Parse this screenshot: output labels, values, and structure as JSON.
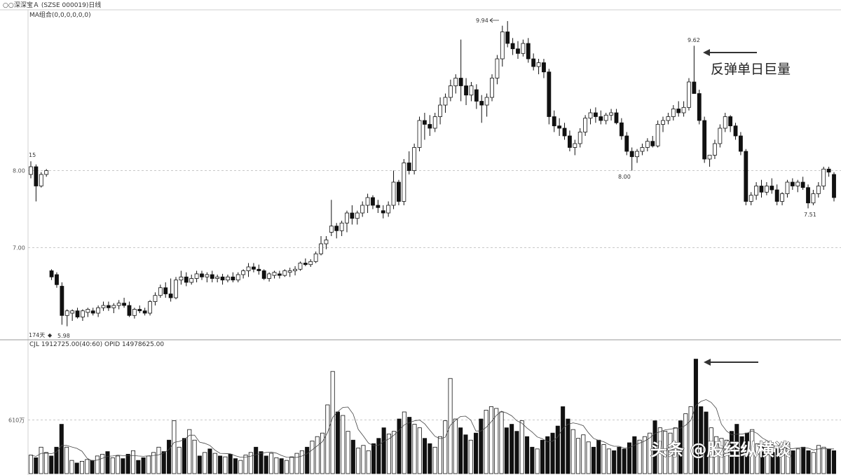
{
  "header": {
    "stock_title": "深深宝Ａ (SZSE 000019)日线",
    "ma_label": "MA组合(0,0,0,0,0,0)",
    "volume_label": "CJL  1912725.00(40:60)   OPID  14978625.00"
  },
  "annotations": {
    "rebound_text": "反弹单日巨量",
    "high_label": "9.94",
    "second_high_label": "9.62",
    "mid_low_label": "8.00",
    "right_low_label": "7.51",
    "low_label": "5.98",
    "days_label": "174天",
    "left_label": "15"
  },
  "watermark": "头条 @股经纵横谈",
  "chart_data": [
    {
      "type": "candlestick",
      "y_ticks": [
        "8.00",
        "7.00"
      ],
      "y_tick_values": [
        8.0,
        7.0
      ],
      "ylim": [
        5.85,
        10.05
      ],
      "grid": "dashed horizontal at 8.00 and 7.00",
      "ohlc": [
        [
          7.95,
          8.12,
          7.9,
          8.05
        ],
        [
          8.05,
          8.08,
          7.6,
          7.8
        ],
        [
          7.8,
          7.98,
          7.78,
          7.95
        ],
        [
          7.95,
          8.02,
          7.92,
          8.0
        ],
        [
          6.7,
          6.72,
          6.58,
          6.62
        ],
        [
          6.65,
          6.68,
          6.48,
          6.52
        ],
        [
          6.5,
          6.55,
          6.0,
          6.12
        ],
        [
          6.12,
          6.2,
          5.98,
          6.18
        ],
        [
          6.15,
          6.2,
          6.05,
          6.18
        ],
        [
          6.18,
          6.22,
          6.08,
          6.1
        ],
        [
          6.1,
          6.2,
          6.05,
          6.18
        ],
        [
          6.16,
          6.22,
          6.1,
          6.2
        ],
        [
          6.18,
          6.22,
          6.12,
          6.15
        ],
        [
          6.15,
          6.25,
          6.1,
          6.22
        ],
        [
          6.22,
          6.3,
          6.18,
          6.25
        ],
        [
          6.25,
          6.3,
          6.18,
          6.22
        ],
        [
          6.22,
          6.28,
          6.15,
          6.25
        ],
        [
          6.25,
          6.32,
          6.2,
          6.28
        ],
        [
          6.28,
          6.35,
          6.22,
          6.25
        ],
        [
          6.25,
          6.3,
          6.1,
          6.12
        ],
        [
          6.12,
          6.22,
          6.08,
          6.2
        ],
        [
          6.2,
          6.25,
          6.15,
          6.18
        ],
        [
          6.18,
          6.22,
          6.12,
          6.15
        ],
        [
          6.15,
          6.32,
          6.12,
          6.3
        ],
        [
          6.3,
          6.42,
          6.25,
          6.38
        ],
        [
          6.38,
          6.52,
          6.35,
          6.48
        ],
        [
          6.48,
          6.55,
          6.35,
          6.4
        ],
        [
          6.4,
          6.6,
          6.3,
          6.35
        ],
        [
          6.35,
          6.62,
          6.33,
          6.58
        ],
        [
          6.58,
          6.7,
          6.52,
          6.62
        ],
        [
          6.62,
          6.68,
          6.5,
          6.55
        ],
        [
          6.55,
          6.65,
          6.52,
          6.6
        ],
        [
          6.6,
          6.7,
          6.55,
          6.66
        ],
        [
          6.66,
          6.7,
          6.58,
          6.62
        ],
        [
          6.62,
          6.68,
          6.55,
          6.65
        ],
        [
          6.65,
          6.7,
          6.55,
          6.6
        ],
        [
          6.6,
          6.65,
          6.55,
          6.62
        ],
        [
          6.62,
          6.66,
          6.52,
          6.58
        ],
        [
          6.58,
          6.65,
          6.55,
          6.62
        ],
        [
          6.62,
          6.68,
          6.55,
          6.58
        ],
        [
          6.58,
          6.68,
          6.55,
          6.65
        ],
        [
          6.65,
          6.72,
          6.6,
          6.7
        ],
        [
          6.7,
          6.8,
          6.62,
          6.75
        ],
        [
          6.75,
          6.8,
          6.68,
          6.72
        ],
        [
          6.72,
          6.78,
          6.65,
          6.7
        ],
        [
          6.7,
          6.72,
          6.58,
          6.6
        ],
        [
          6.6,
          6.68,
          6.56,
          6.66
        ],
        [
          6.64,
          6.7,
          6.6,
          6.68
        ],
        [
          6.66,
          6.7,
          6.6,
          6.64
        ],
        [
          6.64,
          6.72,
          6.62,
          6.7
        ],
        [
          6.68,
          6.74,
          6.62,
          6.7
        ],
        [
          6.7,
          6.76,
          6.64,
          6.72
        ],
        [
          6.72,
          6.82,
          6.7,
          6.8
        ],
        [
          6.8,
          6.86,
          6.76,
          6.78
        ],
        [
          6.78,
          6.85,
          6.75,
          6.82
        ],
        [
          6.82,
          6.95,
          6.8,
          6.92
        ],
        [
          6.92,
          7.15,
          6.9,
          7.05
        ],
        [
          7.05,
          7.15,
          6.98,
          7.1
        ],
        [
          7.2,
          7.62,
          7.15,
          7.28
        ],
        [
          7.28,
          7.32,
          7.12,
          7.22
        ],
        [
          7.22,
          7.35,
          7.15,
          7.32
        ],
        [
          7.32,
          7.48,
          7.2,
          7.45
        ],
        [
          7.45,
          7.55,
          7.3,
          7.38
        ],
        [
          7.38,
          7.48,
          7.3,
          7.45
        ],
        [
          7.45,
          7.6,
          7.4,
          7.55
        ],
        [
          7.55,
          7.7,
          7.45,
          7.65
        ],
        [
          7.65,
          7.68,
          7.5,
          7.55
        ],
        [
          7.55,
          7.62,
          7.45,
          7.52
        ],
        [
          7.48,
          7.55,
          7.38,
          7.45
        ],
        [
          7.45,
          7.6,
          7.4,
          7.55
        ],
        [
          7.55,
          8.0,
          7.5,
          7.85
        ],
        [
          7.85,
          7.88,
          7.55,
          7.6
        ],
        [
          7.6,
          8.15,
          7.55,
          8.1
        ],
        [
          8.1,
          8.25,
          7.95,
          8.0
        ],
        [
          8.0,
          8.35,
          7.95,
          8.3
        ],
        [
          8.3,
          8.7,
          8.25,
          8.65
        ],
        [
          8.65,
          8.75,
          8.4,
          8.6
        ],
        [
          8.6,
          8.72,
          8.45,
          8.55
        ],
        [
          8.55,
          8.75,
          8.5,
          8.7
        ],
        [
          8.7,
          8.95,
          8.6,
          8.85
        ],
        [
          8.85,
          9.0,
          8.75,
          8.95
        ],
        [
          8.95,
          9.18,
          8.9,
          9.1
        ],
        [
          9.1,
          9.25,
          9.0,
          9.2
        ],
        [
          9.2,
          9.7,
          8.9,
          9.1
        ],
        [
          9.1,
          9.2,
          8.85,
          8.98
        ],
        [
          8.98,
          9.15,
          8.9,
          9.1
        ],
        [
          9.05,
          9.12,
          8.8,
          8.9
        ],
        [
          8.9,
          8.98,
          8.62,
          8.85
        ],
        [
          8.85,
          9.0,
          8.7,
          8.95
        ],
        [
          8.95,
          9.25,
          8.9,
          9.2
        ],
        [
          9.2,
          9.5,
          9.12,
          9.45
        ],
        [
          9.45,
          9.88,
          9.35,
          9.8
        ],
        [
          9.8,
          9.94,
          9.6,
          9.65
        ],
        [
          9.65,
          9.72,
          9.5,
          9.58
        ],
        [
          9.58,
          9.68,
          9.45,
          9.52
        ],
        [
          9.52,
          9.7,
          9.48,
          9.65
        ],
        [
          9.65,
          9.72,
          9.4,
          9.45
        ],
        [
          9.45,
          9.52,
          9.3,
          9.35
        ],
        [
          9.35,
          9.45,
          9.25,
          9.4
        ],
        [
          9.4,
          9.45,
          9.2,
          9.28
        ],
        [
          9.28,
          9.32,
          8.6,
          8.7
        ],
        [
          8.7,
          8.78,
          8.5,
          8.58
        ],
        [
          8.58,
          8.68,
          8.45,
          8.55
        ],
        [
          8.55,
          8.62,
          8.4,
          8.45
        ],
        [
          8.45,
          8.52,
          8.25,
          8.3
        ],
        [
          8.3,
          8.4,
          8.2,
          8.35
        ],
        [
          8.35,
          8.55,
          8.3,
          8.5
        ],
        [
          8.5,
          8.72,
          8.45,
          8.68
        ],
        [
          8.68,
          8.8,
          8.6,
          8.75
        ],
        [
          8.75,
          8.82,
          8.62,
          8.7
        ],
        [
          8.7,
          8.78,
          8.6,
          8.65
        ],
        [
          8.65,
          8.75,
          8.6,
          8.72
        ],
        [
          8.72,
          8.8,
          8.65,
          8.75
        ],
        [
          8.75,
          8.8,
          8.6,
          8.62
        ],
        [
          8.62,
          8.68,
          8.4,
          8.45
        ],
        [
          8.45,
          8.5,
          8.2,
          8.25
        ],
        [
          8.25,
          8.3,
          8.0,
          8.18
        ],
        [
          8.18,
          8.28,
          8.1,
          8.25
        ],
        [
          8.25,
          8.35,
          8.2,
          8.3
        ],
        [
          8.3,
          8.42,
          8.25,
          8.38
        ],
        [
          8.38,
          8.45,
          8.3,
          8.32
        ],
        [
          8.32,
          8.65,
          8.3,
          8.6
        ],
        [
          8.6,
          8.7,
          8.5,
          8.65
        ],
        [
          8.65,
          8.75,
          8.6,
          8.7
        ],
        [
          8.7,
          8.85,
          8.65,
          8.8
        ],
        [
          8.8,
          8.9,
          8.7,
          8.75
        ],
        [
          8.75,
          8.9,
          8.7,
          8.82
        ],
        [
          8.82,
          9.2,
          8.78,
          9.15
        ],
        [
          9.15,
          9.62,
          9.0,
          9.0
        ],
        [
          9.0,
          9.05,
          8.6,
          8.65
        ],
        [
          8.65,
          8.7,
          8.1,
          8.15
        ],
        [
          8.15,
          8.2,
          8.05,
          8.2
        ],
        [
          8.2,
          8.4,
          8.15,
          8.35
        ],
        [
          8.35,
          8.6,
          8.3,
          8.55
        ],
        [
          8.55,
          8.75,
          8.5,
          8.7
        ],
        [
          8.7,
          8.72,
          8.5,
          8.58
        ],
        [
          8.58,
          8.62,
          8.4,
          8.45
        ],
        [
          8.45,
          8.5,
          8.2,
          8.25
        ],
        [
          8.25,
          8.28,
          7.55,
          7.6
        ],
        [
          7.6,
          7.72,
          7.55,
          7.68
        ],
        [
          7.68,
          7.85,
          7.62,
          7.8
        ],
        [
          7.8,
          7.88,
          7.65,
          7.72
        ],
        [
          7.72,
          7.85,
          7.68,
          7.8
        ],
        [
          7.8,
          7.9,
          7.7,
          7.75
        ],
        [
          7.75,
          7.82,
          7.55,
          7.6
        ],
        [
          7.6,
          7.72,
          7.55,
          7.7
        ],
        [
          7.7,
          7.88,
          7.65,
          7.85
        ],
        [
          7.85,
          7.9,
          7.75,
          7.8
        ],
        [
          7.8,
          7.88,
          7.72,
          7.85
        ],
        [
          7.85,
          7.92,
          7.75,
          7.78
        ],
        [
          7.78,
          7.82,
          7.51,
          7.58
        ],
        [
          7.58,
          7.75,
          7.55,
          7.7
        ],
        [
          7.7,
          7.85,
          7.65,
          7.8
        ],
        [
          7.8,
          8.05,
          7.75,
          8.02
        ],
        [
          8.02,
          8.05,
          7.92,
          7.98
        ],
        [
          7.95,
          7.98,
          7.6,
          7.65
        ]
      ]
    },
    {
      "type": "bar",
      "series_label": "CJL",
      "y_ticks": [
        "610万"
      ],
      "y_tick_values": [
        610
      ],
      "ylim": [
        0,
        1400
      ],
      "values_unit": "万",
      "values": [
        210,
        180,
        300,
        240,
        200,
        300,
        560,
        300,
        150,
        120,
        140,
        160,
        150,
        200,
        220,
        250,
        180,
        200,
        170,
        220,
        260,
        150,
        180,
        200,
        240,
        300,
        250,
        380,
        600,
        300,
        400,
        500,
        380,
        200,
        240,
        280,
        230,
        200,
        190,
        220,
        170,
        150,
        210,
        240,
        300,
        250,
        200,
        230,
        180,
        170,
        150,
        190,
        230,
        260,
        300,
        370,
        420,
        460,
        780,
        1160,
        700,
        660,
        480,
        380,
        290,
        320,
        260,
        340,
        400,
        520,
        450,
        480,
        620,
        700,
        640,
        560,
        520,
        400,
        340,
        300,
        420,
        600,
        1080,
        620,
        520,
        440,
        380,
        460,
        620,
        720,
        760,
        740,
        700,
        520,
        560,
        480,
        600,
        420,
        300,
        280,
        380,
        420,
        460,
        540,
        760,
        620,
        500,
        400,
        440,
        360,
        300,
        380,
        330,
        280,
        260,
        300,
        280,
        350,
        420,
        380,
        420,
        460,
        600,
        520,
        480,
        460,
        520,
        600,
        680,
        760,
        1300,
        760,
        700,
        520,
        420,
        400,
        380,
        480,
        560,
        420,
        460,
        500,
        340,
        300,
        260,
        240,
        280,
        300,
        340,
        260,
        280,
        300,
        260,
        240,
        320,
        300,
        280,
        260
      ]
    }
  ]
}
